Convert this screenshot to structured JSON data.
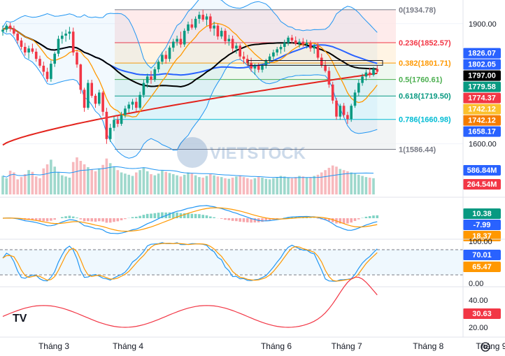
{
  "chart_data": {
    "type": "candlestick",
    "x_labels": [
      {
        "label": "Tháng 3",
        "idx": 10
      },
      {
        "label": "Tháng 4",
        "idx": 30
      },
      {
        "label": "Tháng 6",
        "idx": 70
      },
      {
        "label": "Tháng 7",
        "idx": 89
      },
      {
        "label": "Tháng 8",
        "idx": 111
      },
      {
        "label": "Tháng 9",
        "idx": 128
      }
    ],
    "price_axis": {
      "ylim": [
        1575,
        1945
      ],
      "ticks": [
        {
          "label": "1900.00",
          "value": 1900
        },
        {
          "label": "1600.00",
          "value": 1600
        }
      ]
    },
    "fibonacci": [
      {
        "label": "0(1934.78)",
        "level": 0,
        "value": 1934.78,
        "color": "#787b86"
      },
      {
        "label": "0.236(1852.57)",
        "level": 0.236,
        "value": 1852.57,
        "color": "#f23645"
      },
      {
        "label": "0.382(1801.71)",
        "level": 0.382,
        "value": 1801.71,
        "color": "#ff9800"
      },
      {
        "label": "0.5(1760.61)",
        "level": 0.5,
        "value": 1760.61,
        "color": "#4caf50"
      },
      {
        "label": "0.618(1719.50)",
        "level": 0.618,
        "value": 1719.5,
        "color": "#089981"
      },
      {
        "label": "0.786(1660.98)",
        "level": 0.786,
        "value": 1660.98,
        "color": "#00bcd4"
      },
      {
        "label": "1(1586.44)",
        "level": 1,
        "value": 1586.44,
        "color": "#787b86"
      }
    ],
    "price_labels": [
      {
        "text": "1826.07",
        "value": 1826.07,
        "bg": "#2962ff"
      },
      {
        "text": "1802.05",
        "value": 1802.05,
        "bg": "#2962ff"
      },
      {
        "text": "1797.00",
        "value": 1797.0,
        "bg": "#000000"
      },
      {
        "text": "1779.58",
        "value": 1779.58,
        "bg": "#089981"
      },
      {
        "text": "1774.37",
        "value": 1774.37,
        "bg": "#f23645"
      },
      {
        "text": "1742.12",
        "value": 1742.12,
        "bg": "#fbc02d"
      },
      {
        "text": "1742.12",
        "value": 1742.12,
        "bg": "#f57c00"
      },
      {
        "text": "1658.17",
        "value": 1658.17,
        "bg": "#2962ff"
      }
    ],
    "candles": [
      [
        1880,
        1895,
        1870,
        1885
      ],
      [
        1885,
        1900,
        1878,
        1895
      ],
      [
        1895,
        1902,
        1880,
        1888
      ],
      [
        1888,
        1895,
        1870,
        1875
      ],
      [
        1875,
        1882,
        1850,
        1858
      ],
      [
        1858,
        1865,
        1835,
        1842
      ],
      [
        1842,
        1852,
        1820,
        1828
      ],
      [
        1828,
        1845,
        1812,
        1838
      ],
      [
        1838,
        1850,
        1825,
        1830
      ],
      [
        1830,
        1838,
        1805,
        1812
      ],
      [
        1812,
        1820,
        1790,
        1795
      ],
      [
        1795,
        1805,
        1770,
        1780
      ],
      [
        1780,
        1790,
        1755,
        1762
      ],
      [
        1762,
        1808,
        1755,
        1800
      ],
      [
        1800,
        1830,
        1792,
        1825
      ],
      [
        1825,
        1870,
        1818,
        1862
      ],
      [
        1862,
        1880,
        1850,
        1870
      ],
      [
        1870,
        1885,
        1855,
        1875
      ],
      [
        1875,
        1892,
        1860,
        1880
      ],
      [
        1880,
        1890,
        1820,
        1828
      ],
      [
        1828,
        1835,
        1790,
        1798
      ],
      [
        1798,
        1800,
        1725,
        1735
      ],
      [
        1735,
        1740,
        1680,
        1690
      ],
      [
        1690,
        1760,
        1685,
        1752
      ],
      [
        1752,
        1760,
        1715,
        1720
      ],
      [
        1720,
        1725,
        1690,
        1700
      ],
      [
        1700,
        1735,
        1695,
        1728
      ],
      [
        1728,
        1732,
        1670,
        1680
      ],
      [
        1680,
        1690,
        1600,
        1612
      ],
      [
        1612,
        1650,
        1605,
        1640
      ],
      [
        1640,
        1668,
        1632,
        1660
      ],
      [
        1660,
        1672,
        1642,
        1650
      ],
      [
        1650,
        1680,
        1645,
        1672
      ],
      [
        1672,
        1695,
        1665,
        1688
      ],
      [
        1688,
        1705,
        1678,
        1698
      ],
      [
        1698,
        1712,
        1685,
        1705
      ],
      [
        1705,
        1715,
        1680,
        1690
      ],
      [
        1690,
        1730,
        1685,
        1722
      ],
      [
        1722,
        1760,
        1715,
        1752
      ],
      [
        1752,
        1775,
        1740,
        1768
      ],
      [
        1768,
        1782,
        1750,
        1760
      ],
      [
        1760,
        1792,
        1755,
        1786
      ],
      [
        1786,
        1810,
        1778,
        1805
      ],
      [
        1805,
        1830,
        1798,
        1822
      ],
      [
        1822,
        1832,
        1800,
        1812
      ],
      [
        1812,
        1845,
        1805,
        1840
      ],
      [
        1840,
        1862,
        1830,
        1855
      ],
      [
        1855,
        1870,
        1845,
        1862
      ],
      [
        1862,
        1880,
        1840,
        1848
      ],
      [
        1848,
        1888,
        1842,
        1882
      ],
      [
        1882,
        1905,
        1875,
        1898
      ],
      [
        1898,
        1912,
        1885,
        1890
      ],
      [
        1890,
        1918,
        1885,
        1912
      ],
      [
        1912,
        1930,
        1900,
        1922
      ],
      [
        1922,
        1935,
        1905,
        1910
      ],
      [
        1910,
        1925,
        1895,
        1918
      ],
      [
        1918,
        1925,
        1880,
        1888
      ],
      [
        1888,
        1905,
        1870,
        1895
      ],
      [
        1895,
        1900,
        1860,
        1868
      ],
      [
        1868,
        1890,
        1862,
        1882
      ],
      [
        1882,
        1888,
        1848,
        1856
      ],
      [
        1856,
        1872,
        1845,
        1862
      ],
      [
        1862,
        1870,
        1830,
        1838
      ],
      [
        1838,
        1852,
        1825,
        1845
      ],
      [
        1845,
        1850,
        1810,
        1818
      ],
      [
        1818,
        1830,
        1800,
        1812
      ],
      [
        1812,
        1822,
        1795,
        1802
      ],
      [
        1802,
        1815,
        1780,
        1788
      ],
      [
        1788,
        1800,
        1772,
        1795
      ],
      [
        1795,
        1802,
        1778,
        1785
      ],
      [
        1785,
        1800,
        1778,
        1795
      ],
      [
        1795,
        1812,
        1788,
        1808
      ],
      [
        1808,
        1825,
        1800,
        1818
      ],
      [
        1818,
        1835,
        1810,
        1828
      ],
      [
        1828,
        1842,
        1820,
        1836
      ],
      [
        1836,
        1848,
        1825,
        1842
      ],
      [
        1842,
        1860,
        1830,
        1852
      ],
      [
        1852,
        1870,
        1845,
        1865
      ],
      [
        1865,
        1872,
        1850,
        1858
      ],
      [
        1858,
        1868,
        1845,
        1850
      ],
      [
        1850,
        1862,
        1840,
        1855
      ],
      [
        1855,
        1864,
        1842,
        1848
      ],
      [
        1848,
        1860,
        1838,
        1852
      ],
      [
        1852,
        1858,
        1830,
        1838
      ],
      [
        1838,
        1850,
        1825,
        1845
      ],
      [
        1845,
        1852,
        1810,
        1815
      ],
      [
        1815,
        1825,
        1790,
        1795
      ],
      [
        1795,
        1808,
        1778,
        1782
      ],
      [
        1782,
        1792,
        1740,
        1748
      ],
      [
        1748,
        1755,
        1700,
        1708
      ],
      [
        1708,
        1715,
        1660,
        1668
      ],
      [
        1668,
        1700,
        1660,
        1695
      ],
      [
        1695,
        1702,
        1665,
        1672
      ],
      [
        1672,
        1680,
        1650,
        1662
      ],
      [
        1662,
        1700,
        1655,
        1695
      ],
      [
        1695,
        1735,
        1690,
        1728
      ],
      [
        1728,
        1760,
        1720,
        1752
      ],
      [
        1752,
        1775,
        1745,
        1768
      ],
      [
        1768,
        1785,
        1758,
        1778
      ],
      [
        1778,
        1790,
        1765,
        1772
      ],
      [
        1772,
        1792,
        1768,
        1787
      ],
      [
        1787,
        1795,
        1776,
        1780
      ]
    ],
    "volume": {
      "label_top": "586.84M",
      "label_bottom": "264.54M",
      "values": [
        320,
        280,
        410,
        380,
        260,
        300,
        350,
        420,
        390,
        310,
        280,
        450,
        520,
        600,
        480,
        390,
        330,
        310,
        290,
        560,
        640,
        580,
        520,
        470,
        430,
        400,
        450,
        510,
        620,
        540,
        470,
        420,
        380,
        360,
        340,
        320,
        380,
        420,
        460,
        400,
        350,
        330,
        360,
        410,
        390,
        370,
        350,
        330,
        310,
        340,
        380,
        360,
        330,
        300,
        290,
        320,
        350,
        330,
        310,
        300,
        280,
        270,
        290,
        310,
        330,
        300,
        280,
        260,
        280,
        300,
        290,
        270,
        260,
        280,
        300,
        320,
        310,
        290,
        280,
        300,
        320,
        310,
        290,
        300,
        320,
        340,
        380,
        420,
        460,
        500,
        480,
        440,
        420,
        400,
        380,
        360,
        340,
        320,
        300,
        290,
        280
      ]
    },
    "macd_labels": [
      {
        "text": "10.38",
        "bg": "#089981"
      },
      {
        "text": "-7.99",
        "bg": "#2962ff"
      },
      {
        "text": "18.37",
        "bg": "#ff9800"
      }
    ],
    "stoch": {
      "ticks": [
        {
          "label": "100.00",
          "value": 100
        },
        {
          "label": "0.00",
          "value": 0
        }
      ],
      "labels": [
        {
          "text": "70.01",
          "bg": "#2962ff"
        },
        {
          "text": "65.47",
          "bg": "#ff9800"
        }
      ]
    },
    "adx": {
      "ticks": [
        {
          "label": "40.00",
          "value": 40
        },
        {
          "label": "20.00",
          "value": 20
        }
      ],
      "label": {
        "text": "30.63",
        "bg": "#f23645"
      }
    }
  },
  "watermark": {
    "brand": "VIETSTOCK"
  },
  "logo": "TV",
  "colors": {
    "up": "#089981",
    "down": "#f23645",
    "ma_fast": "#ff9800",
    "ma_mid": "#000000",
    "ma_slow_blue": "#2962ff",
    "ma_200": "#e3231c",
    "bb": "#2196f3",
    "grid": "#f0f3fa"
  },
  "icons": {
    "settings": "gear-icon"
  }
}
